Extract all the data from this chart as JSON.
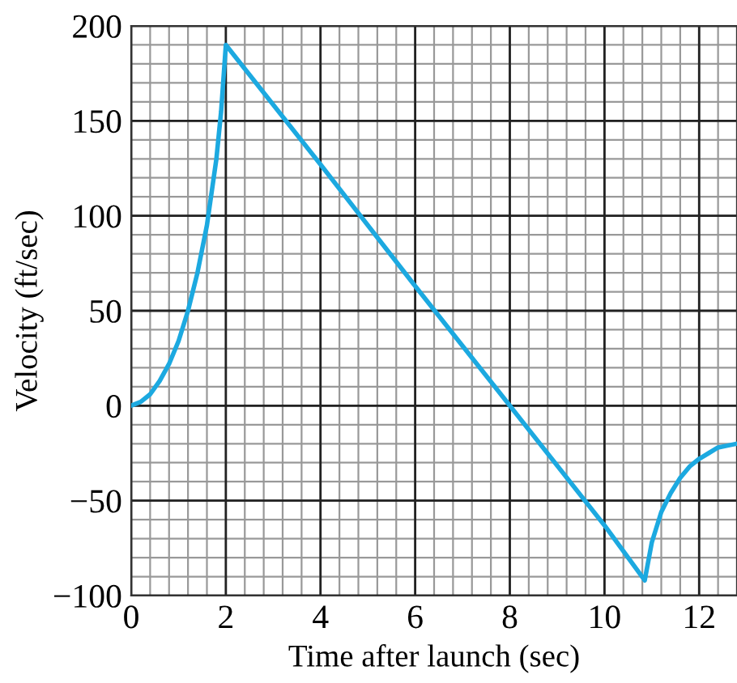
{
  "chart_data": {
    "type": "line",
    "xlabel": "Time after launch (sec)",
    "ylabel": "Velocity (ft/sec)",
    "x": [
      0,
      0.2,
      0.4,
      0.6,
      0.8,
      1.0,
      1.2,
      1.4,
      1.6,
      1.8,
      1.9,
      2,
      4,
      6,
      8,
      10,
      10.85,
      11.0,
      11.2,
      11.4,
      11.6,
      11.8,
      12.0,
      12.2,
      12.4,
      12.6,
      12.8
    ],
    "series": [
      {
        "color": "#1ca9e0",
        "values": [
          0,
          2,
          6,
          13,
          22,
          34,
          50,
          70,
          95,
          130,
          155,
          190,
          127,
          63,
          0,
          -63,
          -92,
          -72,
          -56,
          -46,
          -38,
          -32,
          -28,
          -25,
          -22,
          -21,
          -20
        ]
      }
    ],
    "xlim": [
      0,
      12.8
    ],
    "ylim": [
      -100,
      200
    ],
    "xticks": [
      0,
      2,
      4,
      6,
      8,
      10,
      12
    ],
    "yticks": [
      -100,
      -50,
      0,
      50,
      100,
      150,
      200
    ],
    "grid": true,
    "marker": "none",
    "line_style": "solid"
  }
}
